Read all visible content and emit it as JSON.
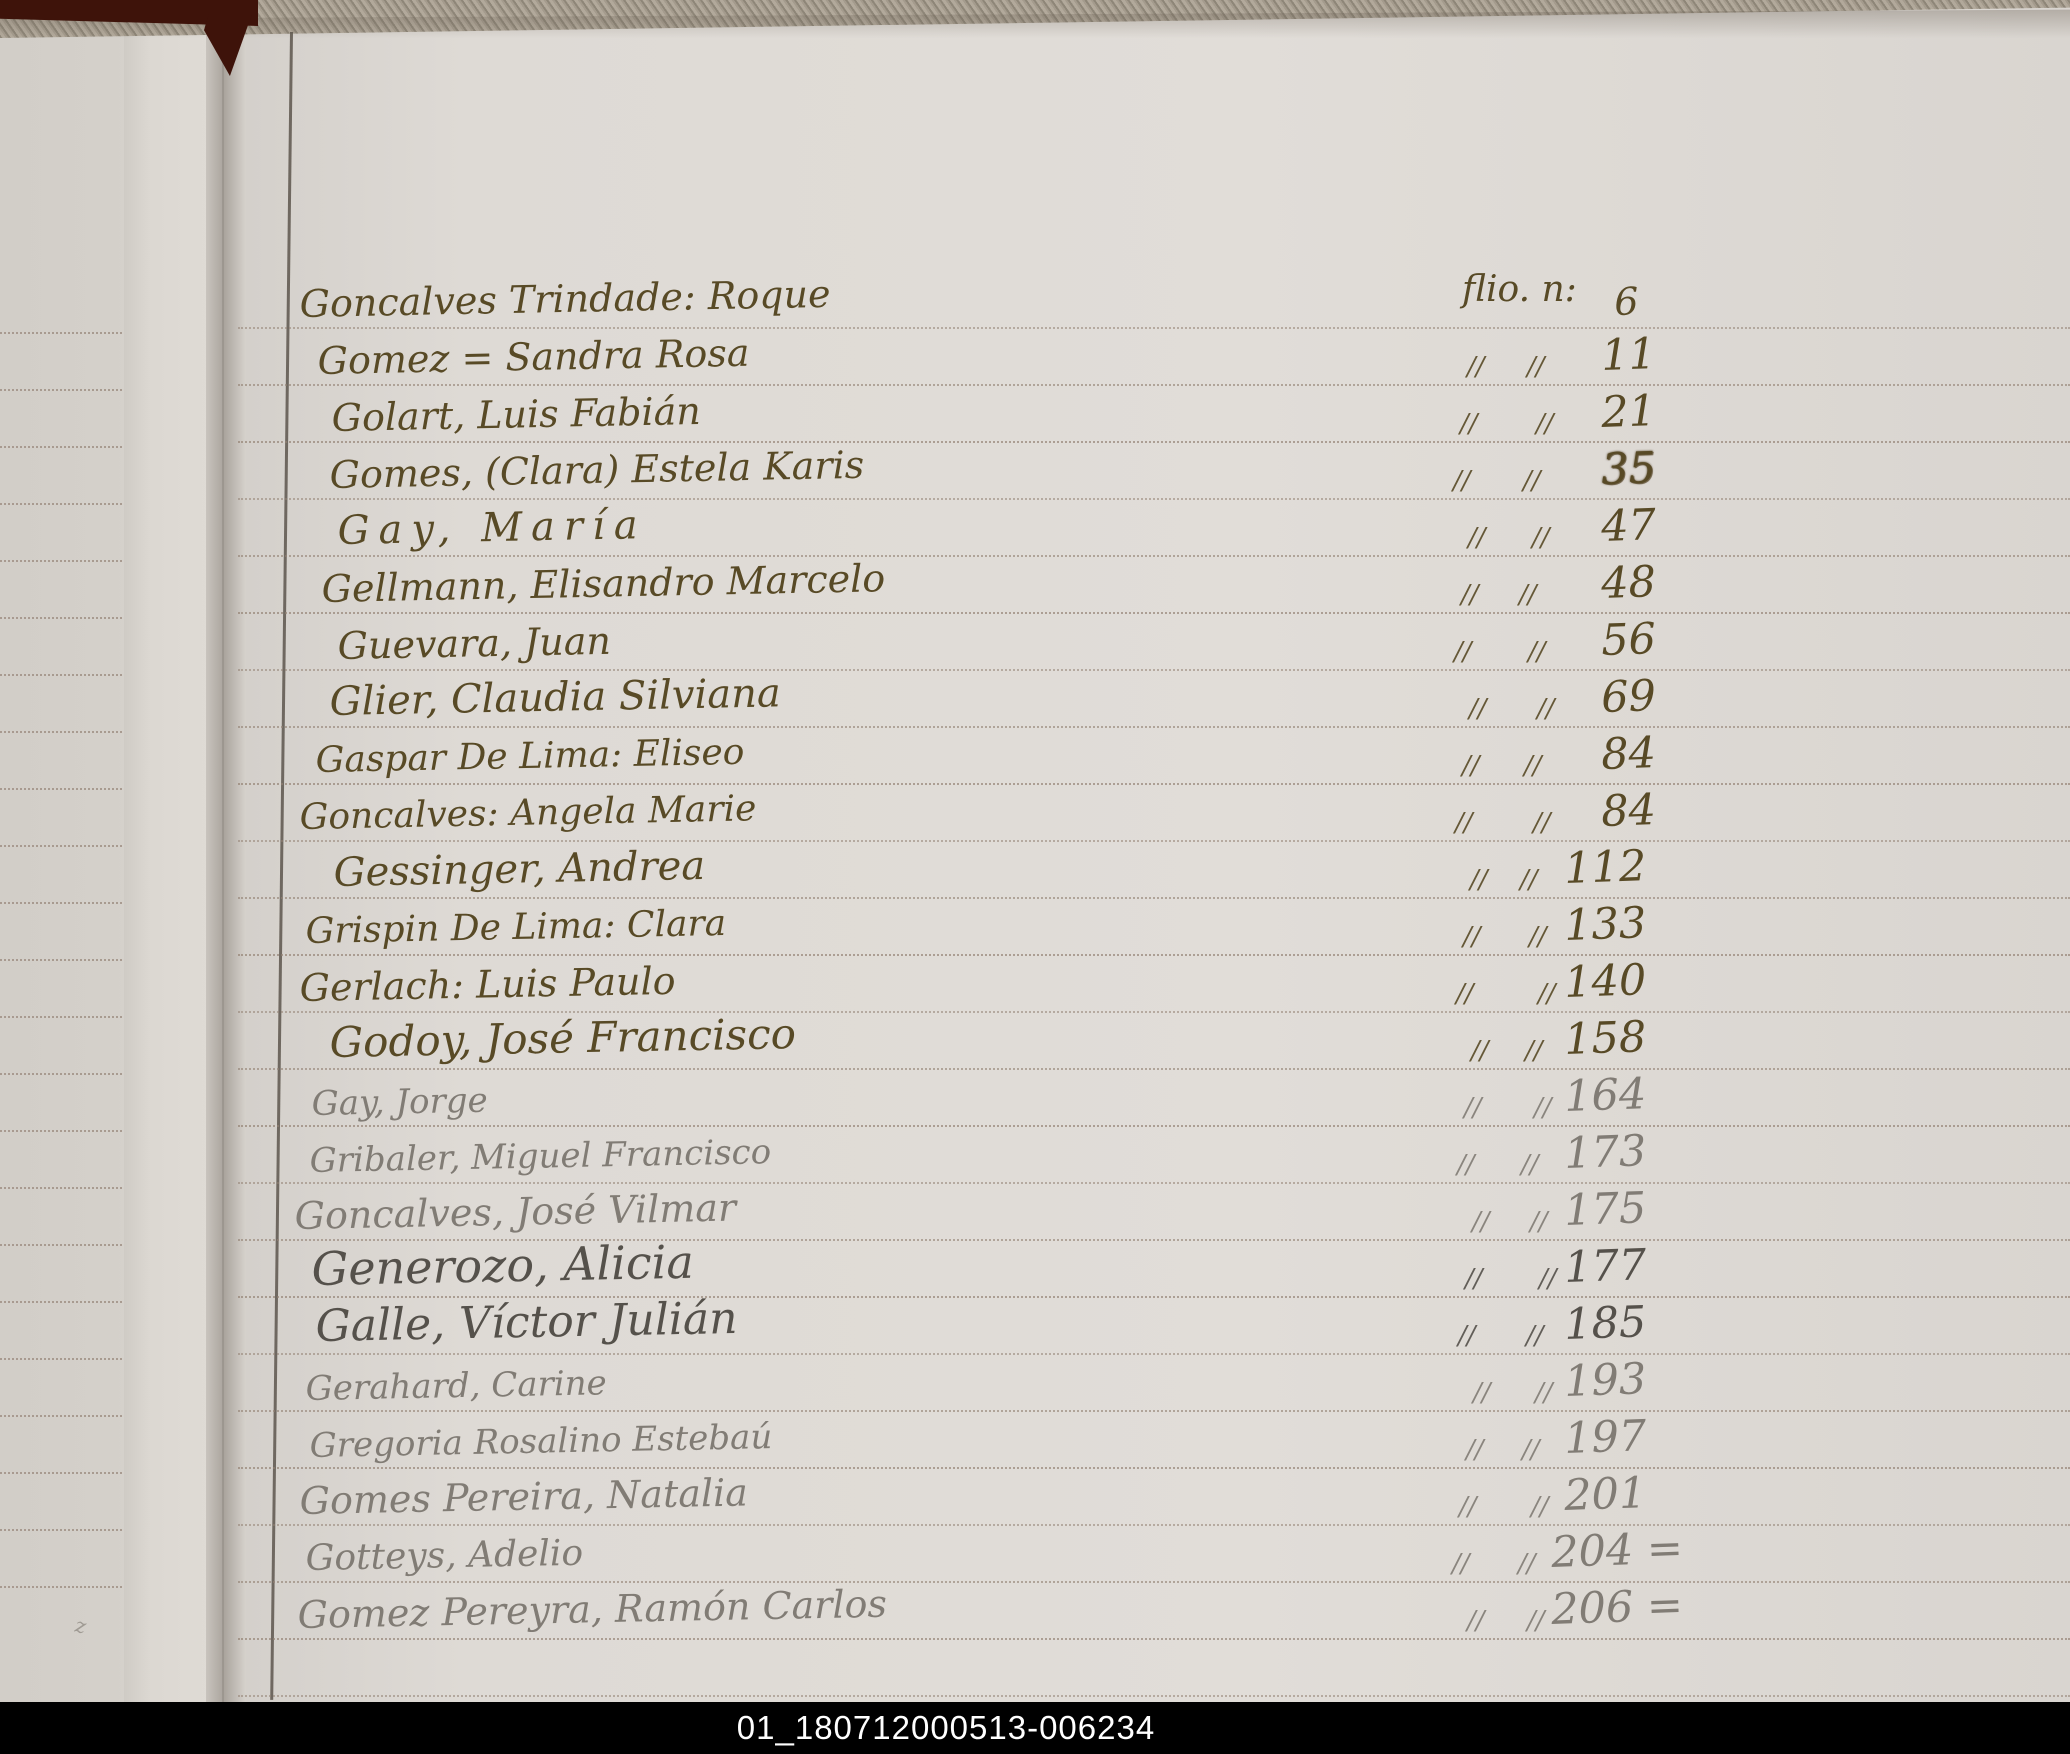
{
  "page": {
    "kind": "handwritten-index-ledger-scan",
    "folio_header": "flio. n:",
    "ditto_mark": "//",
    "footer_code": "01_180712000513-006234",
    "colors": {
      "paper": "#dcd8d3",
      "ink": "#584a26",
      "pencil": "#817c75",
      "pencil_dark": "#55514b",
      "rule_dots": "#92807 2",
      "cover": "#3e130a",
      "footer_bg": "#000000",
      "footer_text": "#ffffff"
    },
    "entries": [
      {
        "name": "Goncalves Trindade: Roque",
        "folio": "6",
        "medium": "ink"
      },
      {
        "name": "Gomez = Sandra Rosa",
        "folio": "11",
        "medium": "ink"
      },
      {
        "name": "Golart, Luis Fabián",
        "folio": "21",
        "medium": "ink"
      },
      {
        "name": "Gomes, (Clara) Estela Karis",
        "folio": "35",
        "medium": "ink",
        "folio_overwritten": true
      },
      {
        "name": "Gay, María",
        "folio": "47",
        "medium": "ink"
      },
      {
        "name": "Gellmann, Elisandro Marcelo",
        "folio": "48",
        "medium": "ink"
      },
      {
        "name": "Guevara, Juan",
        "folio": "56",
        "medium": "ink"
      },
      {
        "name": "Glier, Claudia Silviana",
        "folio": "69",
        "medium": "ink"
      },
      {
        "name": "Gaspar De Lima: Eliseo",
        "folio": "84",
        "medium": "ink"
      },
      {
        "name": "Goncalves: Angela Marie",
        "folio": "84",
        "medium": "ink"
      },
      {
        "name": "Gessinger, Andrea",
        "folio": "112",
        "medium": "ink"
      },
      {
        "name": "Grispin De Lima: Clara",
        "folio": "133",
        "medium": "ink"
      },
      {
        "name": "Gerlach: Luis Paulo",
        "folio": "140",
        "medium": "ink"
      },
      {
        "name": "Godoy, José Francisco",
        "folio": "158",
        "medium": "ink"
      },
      {
        "name": "Gay, Jorge",
        "folio": "164",
        "medium": "pencil"
      },
      {
        "name": "Gribaler, Miguel Francisco",
        "folio": "173",
        "medium": "pencil"
      },
      {
        "name": "Goncalves, José Vilmar",
        "folio": "175",
        "medium": "pencil"
      },
      {
        "name": "Generozo, Alicia",
        "folio": "177",
        "medium": "pencil-dark"
      },
      {
        "name": "Galle, Víctor Julián",
        "folio": "185",
        "medium": "pencil-dark"
      },
      {
        "name": "Gerahard, Carine",
        "folio": "193",
        "medium": "pencil"
      },
      {
        "name": "Gregoria Rosalino Estebaú",
        "folio": "197",
        "medium": "pencil"
      },
      {
        "name": "Gomes Pereira, Natalia",
        "folio": "201",
        "medium": "pencil"
      },
      {
        "name": "Gotteys, Adelio",
        "folio": "204 =",
        "medium": "pencil"
      },
      {
        "name": "Gomez Pereyra, Ramón Carlos",
        "folio": "206 =",
        "medium": "pencil"
      }
    ]
  }
}
